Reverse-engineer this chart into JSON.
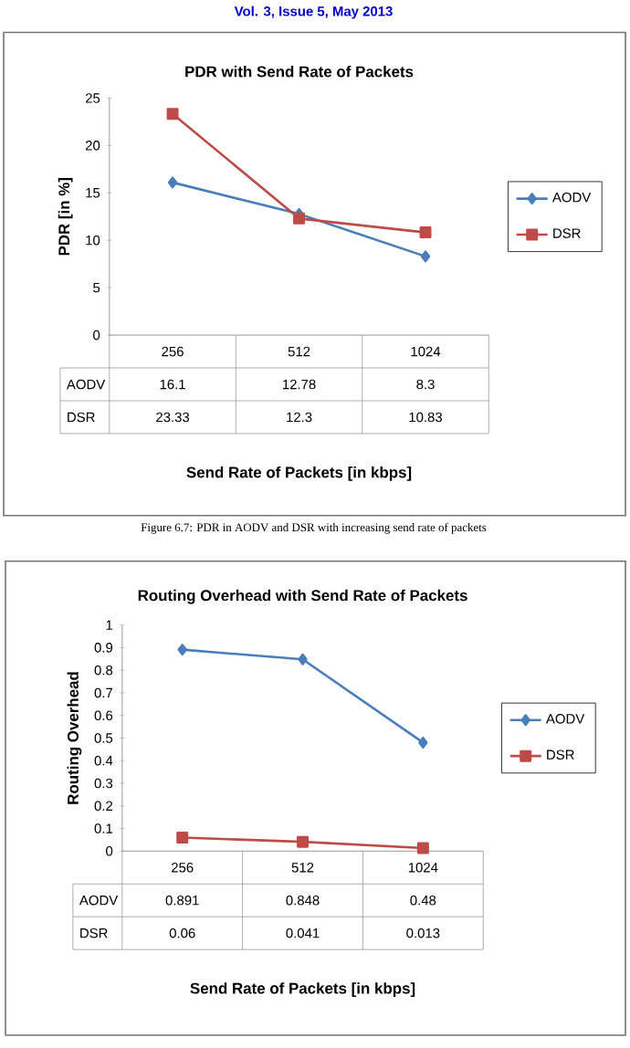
{
  "chart_data": [
    {
      "type": "line",
      "title": "PDR with Send Rate of Packets",
      "xlabel": "Send  Rate of  Packets [in kbps]",
      "ylabel": "PDR [in %]",
      "categories": [
        "256",
        "512",
        "1024"
      ],
      "series": [
        {
          "name": "AODV",
          "color": "#4a7ebb",
          "marker": "diamond",
          "values": [
            16.1,
            12.78,
            8.3
          ]
        },
        {
          "name": "DSR",
          "color": "#be4b48",
          "marker": "square",
          "values": [
            23.33,
            12.3,
            10.83
          ]
        }
      ],
      "ylim": [
        0,
        25
      ],
      "yticks": [
        0,
        5,
        10,
        15,
        20,
        25
      ],
      "legend": "right",
      "data_labels": true,
      "annotations": [
        "Vol. 3, Issue 5, May 2013",
        "Figure 6.7: PDR in AODV and DSR with increasing send rate of packets"
      ]
    },
    {
      "type": "line",
      "title": "Routing Overhead with Send Rate of Packets",
      "xlabel": "Send  Rate of  Packets [in kbps]",
      "ylabel": "Routing Overhead",
      "categories": [
        "256",
        "512",
        "1024"
      ],
      "series": [
        {
          "name": "AODV",
          "color": "#4a7ebb",
          "marker": "diamond",
          "values": [
            0.891,
            0.848,
            0.48
          ]
        },
        {
          "name": "DSR",
          "color": "#be4b48",
          "marker": "square",
          "values": [
            0.06,
            0.041,
            0.013
          ]
        }
      ],
      "ylim": [
        0,
        1
      ],
      "yticks": [
        0,
        0.1,
        0.2,
        0.3,
        0.4,
        0.5,
        0.6,
        0.7,
        0.8,
        0.9,
        1
      ],
      "legend": "right",
      "data_labels": true
    }
  ]
}
